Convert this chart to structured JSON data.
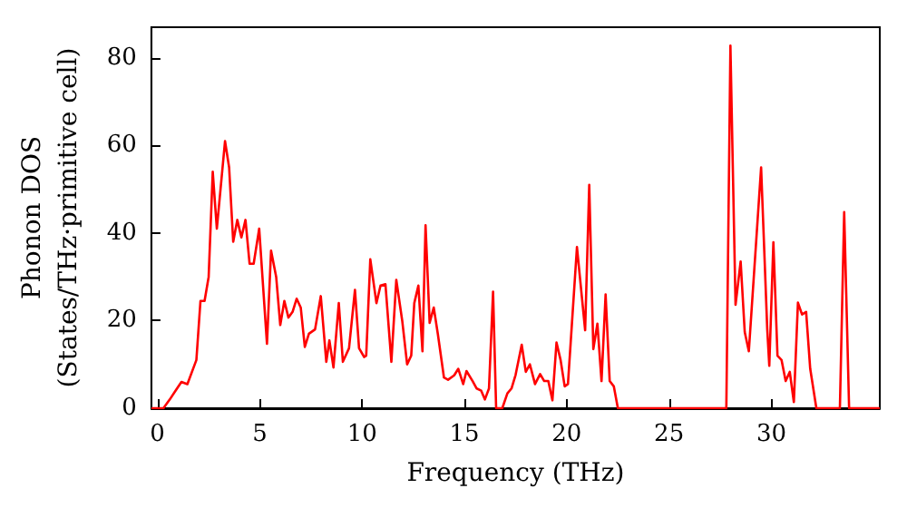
{
  "chart_data": {
    "type": "line",
    "xlabel": "Frequency (THz)",
    "ylabel": "Phonon DOS\n(States/THz·primitive cell)",
    "x": [
      -0.3,
      0.29,
      0.6,
      0.88,
      1.17,
      1.46,
      1.9,
      2.1,
      2.3,
      2.5,
      2.7,
      2.9,
      3.3,
      3.5,
      3.7,
      3.9,
      4.1,
      4.3,
      4.5,
      4.7,
      4.97,
      5.35,
      5.55,
      5.8,
      6.0,
      6.2,
      6.4,
      6.6,
      6.8,
      7.0,
      7.2,
      7.4,
      7.7,
      7.98,
      8.25,
      8.4,
      8.6,
      8.86,
      9.06,
      9.36,
      9.65,
      9.85,
      10.1,
      10.2,
      10.4,
      10.7,
      10.9,
      11.14,
      11.43,
      11.67,
      11.96,
      12.2,
      12.4,
      12.55,
      12.75,
      12.95,
      13.1,
      13.3,
      13.5,
      13.7,
      14.0,
      14.2,
      14.5,
      14.7,
      14.94,
      15.1,
      15.4,
      15.6,
      15.82,
      16.0,
      16.2,
      16.4,
      16.55,
      16.85,
      17.1,
      17.3,
      17.5,
      17.8,
      18.0,
      18.2,
      18.45,
      18.7,
      18.9,
      19.1,
      19.3,
      19.5,
      19.7,
      19.9,
      20.06,
      20.5,
      20.9,
      21.1,
      21.3,
      21.5,
      21.7,
      21.9,
      22.1,
      22.3,
      22.5,
      27.8,
      28.0,
      28.25,
      28.5,
      28.7,
      28.9,
      29.5,
      29.8,
      29.9,
      30.1,
      30.3,
      30.5,
      30.7,
      30.9,
      31.1,
      31.3,
      31.5,
      31.7,
      31.9,
      32.2,
      33.35,
      33.56,
      33.8,
      35.3
    ],
    "series": [
      {
        "color": "#ff0000",
        "values": [
          0,
          0,
          2,
          4,
          6,
          5.5,
          11,
          24.5,
          24.5,
          30,
          54,
          41,
          61,
          55,
          38,
          43,
          39,
          43,
          33,
          33,
          41,
          14.7,
          36,
          30,
          19,
          24.5,
          20.7,
          22,
          25,
          23,
          14,
          17,
          18,
          25.6,
          10.6,
          15.5,
          9.3,
          24,
          10.6,
          13.7,
          27,
          13.7,
          11.7,
          12,
          34,
          24,
          28,
          28.3,
          10.6,
          29.3,
          20,
          10,
          12,
          24,
          28,
          13,
          41.8,
          19.5,
          23,
          17,
          7,
          6.5,
          7.5,
          9,
          5.5,
          8.5,
          6.2,
          4.5,
          4,
          2,
          4.5,
          26.6,
          0,
          0,
          3.4,
          4.5,
          7.6,
          14.5,
          8.3,
          10,
          5.5,
          7.8,
          6.2,
          6.2,
          1.8,
          15,
          11,
          5,
          5.5,
          36.8,
          17.8,
          51,
          13.5,
          19.3,
          6.2,
          26,
          6.2,
          5,
          0,
          0,
          82.8,
          23.6,
          33.5,
          17.4,
          13,
          55,
          18,
          9.7,
          37.9,
          12,
          11,
          6.2,
          8.3,
          1.4,
          24.1,
          21.4,
          22,
          9,
          0,
          0,
          44.8,
          0,
          0
        ]
      }
    ],
    "xlim": [
      -0.3,
      35.3
    ],
    "ylim": [
      0,
      87
    ],
    "xticks": [
      0,
      5,
      10,
      15,
      20,
      25,
      30
    ],
    "yticks": [
      0,
      20,
      40,
      60,
      80
    ],
    "marker": "none",
    "line_style": "solid"
  }
}
